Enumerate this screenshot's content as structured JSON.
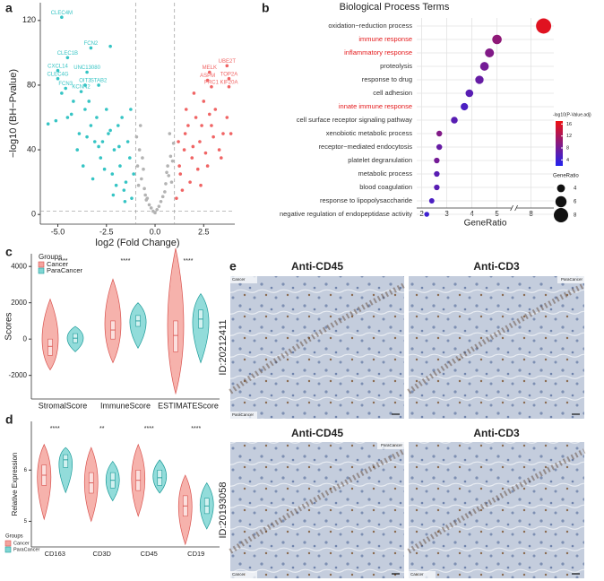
{
  "chart_data": [
    {
      "type": "scatter",
      "panel": "a",
      "xlabel": "log2 (Fold Change)",
      "ylabel": "−log10 (BH−Pvalue)",
      "xlim": [
        -5.9,
        4.1
      ],
      "ylim": [
        -6,
        131
      ],
      "xticks": [
        {
          "value": -5,
          "label": "-5.0"
        },
        {
          "value": -2.5,
          "label": "-2.5"
        },
        {
          "value": 0,
          "label": "0.0"
        },
        {
          "value": 2.5,
          "label": "2.5"
        }
      ],
      "yticks": [
        0,
        40,
        80,
        120
      ],
      "vlines": [
        -1,
        1
      ],
      "hline": 2,
      "series": [
        {
          "color": "#b3b3b3",
          "x": [
            -0.9,
            -0.7,
            -0.5,
            -0.3,
            -0.1,
            0.1,
            0.3,
            0.5,
            0.7,
            0.9,
            -0.8,
            -0.6,
            -0.4,
            -0.2,
            0,
            0.2,
            0.4,
            0.6,
            0.8,
            -0.95,
            0.95,
            -0.85,
            0.85,
            -0.75,
            0.75,
            -0.65,
            0.65,
            -0.55,
            0.55,
            -0.45
          ],
          "y": [
            30,
            22,
            12,
            6,
            2,
            3,
            8,
            14,
            24,
            33,
            40,
            28,
            10,
            4,
            1,
            5,
            11,
            26,
            36,
            48,
            44,
            18,
            20,
            55,
            50,
            35,
            30,
            16,
            19,
            9
          ]
        },
        {
          "color": "#35c4c4",
          "x": [
            -1.2,
            -1.5,
            -1.8,
            -2.1,
            -2.4,
            -2.7,
            -3.0,
            -3.3,
            -3.6,
            -3.9,
            -4.2,
            -4.5,
            -4.8,
            -5.1,
            -1.3,
            -1.6,
            -1.9,
            -2.2,
            -2.5,
            -2.8,
            -3.1,
            -3.4,
            -3.7,
            -4.0,
            -4.3,
            -1.1,
            -1.4,
            -1.7,
            -2.0,
            -2.3,
            -2.6,
            -2.9,
            -3.2,
            -3.5,
            -1.25,
            -1.55,
            -1.85,
            -2.15,
            -5.5,
            -2.3
          ],
          "y": [
            10,
            20,
            30,
            40,
            50,
            45,
            60,
            55,
            65,
            50,
            70,
            60,
            75,
            58,
            35,
            15,
            55,
            25,
            65,
            35,
            45,
            70,
            30,
            40,
            62,
            25,
            45,
            60,
            18,
            52,
            28,
            42,
            22,
            48,
            65,
            8,
            42,
            12,
            56,
            104
          ]
        },
        {
          "color": "#f06464",
          "x": [
            1.1,
            1.3,
            1.5,
            1.7,
            1.9,
            2.1,
            2.3,
            2.5,
            2.7,
            2.9,
            3.1,
            3.3,
            3.5,
            3.7,
            1.2,
            1.4,
            1.6,
            1.8,
            2.0,
            2.2,
            2.4,
            2.6,
            2.8,
            3.0,
            3.4,
            1.25,
            1.55,
            1.95,
            2.35,
            3.9
          ],
          "y": [
            10,
            25,
            40,
            55,
            35,
            60,
            45,
            70,
            30,
            55,
            65,
            40,
            50,
            60,
            45,
            15,
            65,
            20,
            75,
            28,
            55,
            38,
            62,
            48,
            35,
            30,
            50,
            42,
            18,
            50
          ]
        }
      ],
      "genes": [
        {
          "name": "CLEC4M",
          "x": -4.8,
          "y": 122,
          "color": "#35c4c4"
        },
        {
          "name": "FCN2",
          "x": -3.3,
          "y": 103,
          "color": "#35c4c4"
        },
        {
          "name": "CLEC1B",
          "x": -4.5,
          "y": 97,
          "color": "#35c4c4"
        },
        {
          "name": "CXCL14",
          "x": -5.0,
          "y": 89,
          "color": "#35c4c4"
        },
        {
          "name": "UNC13080",
          "x": -3.5,
          "y": 88,
          "color": "#35c4c4"
        },
        {
          "name": "CLEC4G",
          "x": -5.0,
          "y": 84,
          "color": "#35c4c4"
        },
        {
          "name": "OIT3",
          "x": -3.6,
          "y": 80,
          "color": "#35c4c4"
        },
        {
          "name": "STAB2",
          "x": -2.9,
          "y": 80,
          "color": "#35c4c4"
        },
        {
          "name": "FCN3",
          "x": -4.6,
          "y": 78,
          "color": "#35c4c4"
        },
        {
          "name": "KCNN2",
          "x": -3.8,
          "y": 76,
          "color": "#35c4c4"
        },
        {
          "name": "MELK",
          "x": 2.8,
          "y": 88,
          "color": "#f06464"
        },
        {
          "name": "UBE2T",
          "x": 3.7,
          "y": 92,
          "color": "#f06464"
        },
        {
          "name": "ASPM",
          "x": 2.7,
          "y": 83,
          "color": "#f06464"
        },
        {
          "name": "TOP2A",
          "x": 3.8,
          "y": 84,
          "color": "#f06464"
        },
        {
          "name": "PRC1",
          "x": 2.9,
          "y": 79,
          "color": "#f06464"
        },
        {
          "name": "KIF20A",
          "x": 3.8,
          "y": 79,
          "color": "#f06464"
        }
      ]
    },
    {
      "type": "dot",
      "panel": "b",
      "title": "Biological Process Terms",
      "xlabel": "GeneRatio",
      "categories": [
        "oxidation−reduction process",
        "immune response",
        "inflammatory response",
        "proteolysis",
        "response to drug",
        "cell adhesion",
        "innate immune response",
        "cell surface receptor signaling pathway",
        "xenobiotic metabolic process",
        "receptor−mediated endocytosis",
        "platelet degranulation",
        "metabolic process",
        "blood coagulation",
        "response to lipopolysaccharide",
        "negative regulation of endopeptidase activity"
      ],
      "label_colors": [
        "#333",
        "#e41a1c",
        "#e41a1c",
        "#333",
        "#333",
        "#333",
        "#e41a1c",
        "#333",
        "#333",
        "#333",
        "#333",
        "#333",
        "#333",
        "#333",
        "#333"
      ],
      "values": [
        8.5,
        5.0,
        4.7,
        4.5,
        4.3,
        3.9,
        3.7,
        3.3,
        2.7,
        2.7,
        2.6,
        2.6,
        2.6,
        2.4,
        2.2
      ],
      "padj": [
        16,
        10,
        9,
        8,
        7,
        6,
        5,
        6,
        9,
        7,
        8,
        6,
        6,
        5,
        4
      ],
      "xlim": [
        1.8,
        8.9
      ],
      "xbreak": [
        5.5,
        7.5
      ],
      "xticks": [
        2,
        3,
        4,
        5,
        8
      ],
      "grid": true,
      "color_title": "-log10(P-Value.adj)",
      "colorlim": [
        2,
        17
      ],
      "colorticks": [
        4,
        8,
        12,
        16
      ],
      "color_range": [
        "#2222ee",
        "#ee1111"
      ],
      "size_title": "GeneRatio",
      "size_ticks": [
        4,
        6,
        8
      ]
    },
    {
      "type": "violin",
      "panel": "c",
      "ylabel": "Scores",
      "legend_title": "Groups",
      "legend": "top-left",
      "categories": [
        "StromalScore",
        "ImmuneScore",
        "ESTIMATEScore"
      ],
      "significance": [
        "****",
        "****",
        "****"
      ],
      "ylim": [
        -3300,
        4700
      ],
      "yticks": [
        -2000,
        0,
        2000,
        4000
      ],
      "series": [
        {
          "name": "Cancer",
          "color": "#f4a49e",
          "edge": "#d9534f",
          "min": [
            -1700,
            -1300,
            -3000
          ],
          "q1": [
            -900,
            0,
            -700
          ],
          "median": [
            -400,
            500,
            200
          ],
          "q3": [
            0,
            1000,
            1000
          ],
          "max": [
            2200,
            3300,
            5000
          ]
        },
        {
          "name": "ParaCancer",
          "color": "#7fd6d4",
          "edge": "#1d9c9a",
          "min": [
            -700,
            -500,
            -1300
          ],
          "q1": [
            -200,
            700,
            600
          ],
          "median": [
            50,
            1000,
            1100
          ],
          "q3": [
            300,
            1300,
            1600
          ],
          "max": [
            700,
            2000,
            2500
          ]
        }
      ]
    },
    {
      "type": "violin",
      "panel": "d",
      "ylabel": "Relative Expression",
      "legend_title": "Groups",
      "legend": "bottom-left",
      "categories": [
        "CD163",
        "CD3D",
        "CD45",
        "CD19"
      ],
      "significance": [
        "****",
        "**",
        "****",
        "****"
      ],
      "ylim": [
        4.5,
        6.95
      ],
      "yticks": [
        5,
        6
      ],
      "series": [
        {
          "name": "Cancer",
          "color": "#f4a49e",
          "edge": "#d9534f",
          "min": [
            5.04,
            5.0,
            5.1,
            4.55
          ],
          "q1": [
            5.7,
            5.55,
            5.6,
            5.1
          ],
          "median": [
            5.9,
            5.75,
            5.8,
            5.3
          ],
          "q3": [
            6.1,
            5.95,
            6.0,
            5.5
          ],
          "max": [
            6.5,
            6.44,
            6.5,
            5.9
          ]
        },
        {
          "name": "ParaCancer",
          "color": "#7fd6d4",
          "edge": "#1d9c9a",
          "min": [
            5.56,
            5.4,
            5.55,
            4.85
          ],
          "q1": [
            6.05,
            5.65,
            5.7,
            5.15
          ],
          "median": [
            6.2,
            5.8,
            5.85,
            5.3
          ],
          "q3": [
            6.3,
            5.95,
            6.0,
            5.45
          ],
          "max": [
            6.44,
            6.17,
            6.2,
            5.75
          ]
        }
      ]
    }
  ],
  "figure_e": {
    "panel": "e",
    "rows": [
      {
        "id": "ID:20212411",
        "titles": [
          "Anti-CD45",
          "Anti-CD3"
        ],
        "labels": [
          [
            {
              "text": "Cancer",
              "corner": "top-left"
            },
            {
              "text": "ParaCancer",
              "corner": "bottom-left"
            }
          ],
          [
            {
              "text": "ParaCancer",
              "corner": "top-right"
            }
          ]
        ]
      },
      {
        "id": "ID:20193058",
        "titles": [
          "Anti-CD45",
          "Anti-CD3"
        ],
        "labels": [
          [
            {
              "text": "ParaCancer",
              "corner": "top-right"
            },
            {
              "text": "Cancer",
              "corner": "bottom-left"
            }
          ],
          [
            {
              "text": "Cancer",
              "corner": "bottom-left"
            }
          ]
        ]
      }
    ]
  }
}
